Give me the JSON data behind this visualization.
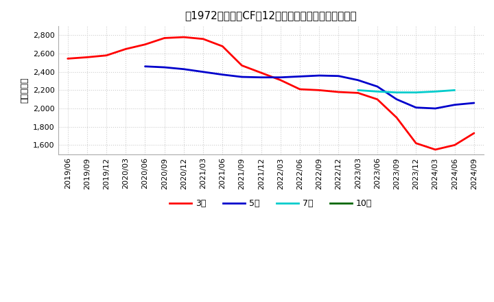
{
  "title": "［1972］　営業CFの12か月移動合計の平均値の推移",
  "ylabel": "（百万円）",
  "ylim": [
    1500,
    2900
  ],
  "yticks": [
    1600,
    1800,
    2000,
    2200,
    2400,
    2600,
    2800
  ],
  "bg_color": "#ffffff",
  "plot_bg_color": "#ffffff",
  "grid_color": "#cccccc",
  "x_labels": [
    "2019/06",
    "2019/09",
    "2019/12",
    "2020/03",
    "2020/06",
    "2020/09",
    "2020/12",
    "2021/03",
    "2021/06",
    "2021/09",
    "2021/12",
    "2022/03",
    "2022/06",
    "2022/09",
    "2022/12",
    "2023/03",
    "2023/06",
    "2023/09",
    "2023/12",
    "2024/03",
    "2024/06",
    "2024/09"
  ],
  "series_3y": {
    "label": "3年",
    "color": "#ff0000",
    "x_indices": [
      0,
      1,
      2,
      3,
      4,
      5,
      6,
      7,
      8,
      9,
      10,
      11,
      12,
      13,
      14,
      15,
      16,
      17,
      18,
      19,
      20,
      21
    ],
    "values": [
      2545,
      2560,
      2580,
      2650,
      2700,
      2770,
      2780,
      2760,
      2680,
      2470,
      2390,
      2310,
      2210,
      2200,
      2180,
      2170,
      2100,
      1900,
      1620,
      1550,
      1600,
      1730
    ]
  },
  "series_5y": {
    "label": "5年",
    "color": "#0000cc",
    "x_indices": [
      4,
      5,
      6,
      7,
      8,
      9,
      10,
      11,
      12,
      13,
      14,
      15,
      16,
      17,
      18,
      19,
      20,
      21
    ],
    "values": [
      2460,
      2450,
      2430,
      2400,
      2370,
      2345,
      2340,
      2340,
      2350,
      2360,
      2355,
      2310,
      2240,
      2100,
      2010,
      2000,
      2040,
      2060
    ]
  },
  "series_7y": {
    "label": "7年",
    "color": "#00cccc",
    "x_indices": [
      15,
      16,
      17,
      18,
      19,
      20
    ],
    "values": [
      2200,
      2185,
      2175,
      2175,
      2185,
      2200
    ]
  },
  "series_10y": {
    "label": "10年",
    "color": "#006600",
    "x_indices": [],
    "values": []
  },
  "legend_colors": [
    "#ff0000",
    "#0000cc",
    "#00cccc",
    "#006600"
  ],
  "legend_labels": [
    "3年",
    "5年",
    "7年",
    "10年"
  ]
}
